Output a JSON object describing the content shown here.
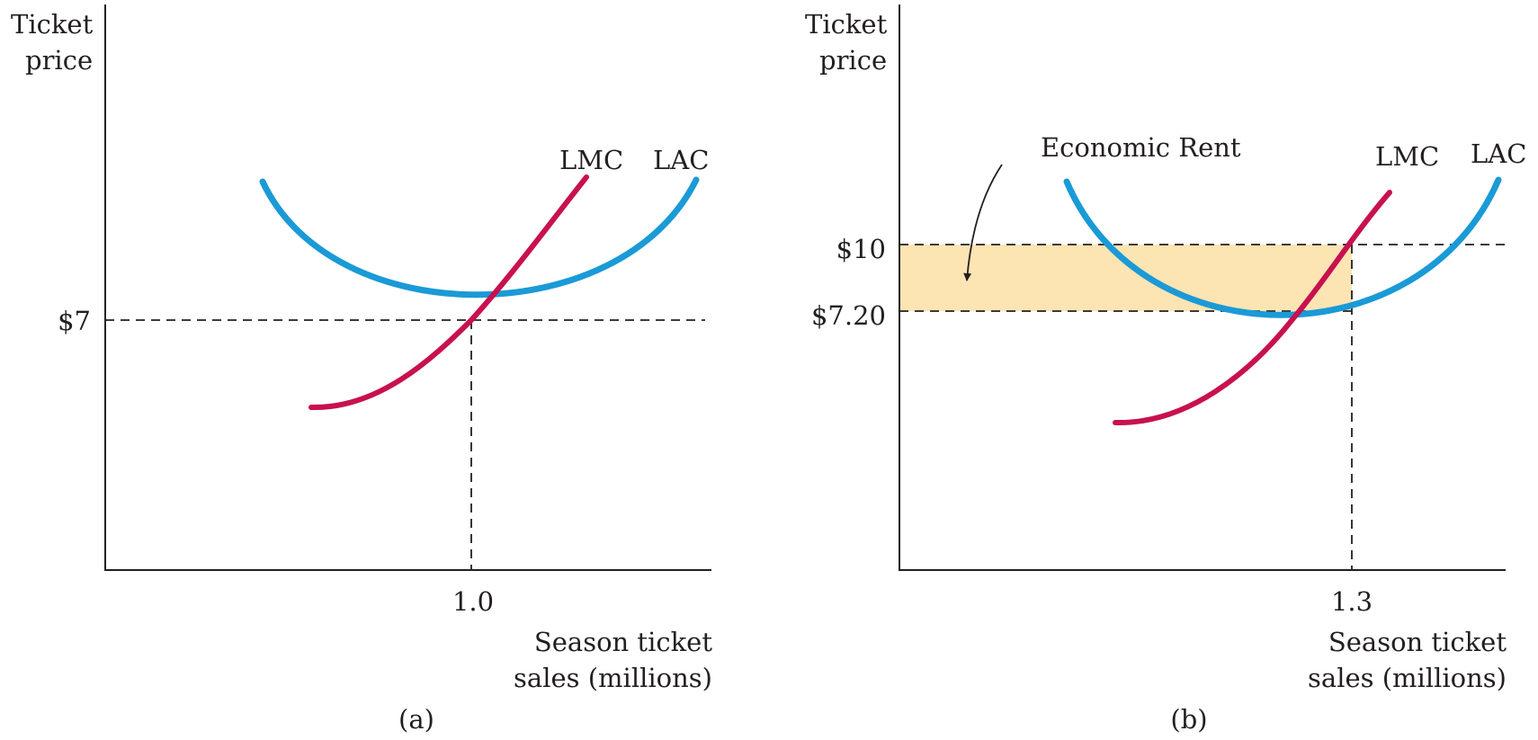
{
  "colors": {
    "lmc": "#c8114f",
    "lac": "#1a9ad6",
    "rent_fill": "#fde4b3",
    "ink": "#231f20"
  },
  "panels": [
    {
      "panel_label": "(a)",
      "y_axis_label_line1": "Ticket",
      "y_axis_label_line2": "price",
      "x_axis_label_line1": "Season ticket",
      "x_axis_label_line2": "sales (millions)",
      "lmc_label": "LMC",
      "lac_label": "LAC",
      "price_tick": "$7",
      "quantity_tick": "1.0"
    },
    {
      "panel_label": "(b)",
      "y_axis_label_line1": "Ticket",
      "y_axis_label_line2": "price",
      "x_axis_label_line1": "Season ticket",
      "x_axis_label_line2": "sales (millions)",
      "lmc_label": "LMC",
      "lac_label": "LAC",
      "price_tick_high": "$10",
      "price_tick_low": "$7.20",
      "quantity_tick": "1.3",
      "annotation": "Economic Rent"
    }
  ]
}
